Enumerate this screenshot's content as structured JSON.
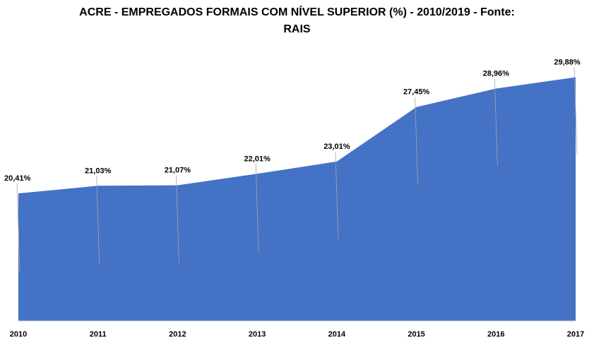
{
  "chart_data": {
    "type": "area",
    "title_line1": "ACRE  - EMPREGADOS FORMAIS COM NÍVEL SUPERIOR (%) - 2010/2019 - Fonte:",
    "title_line2": "RAIS",
    "categories": [
      "2010",
      "2011",
      "2012",
      "2013",
      "2014",
      "2015",
      "2016",
      "2017"
    ],
    "values": [
      20.41,
      21.03,
      21.07,
      22.01,
      23.01,
      27.45,
      28.96,
      29.88
    ],
    "data_labels": [
      "20,41%",
      "21,03%",
      "21,07%",
      "22,01%",
      "23,01%",
      "27,45%",
      "28,96%",
      "29,88%"
    ],
    "xlabel": "",
    "ylabel": "",
    "ylim": [
      10,
      31
    ],
    "grid": false,
    "legend": "none",
    "fill_color": "#4472C4"
  }
}
